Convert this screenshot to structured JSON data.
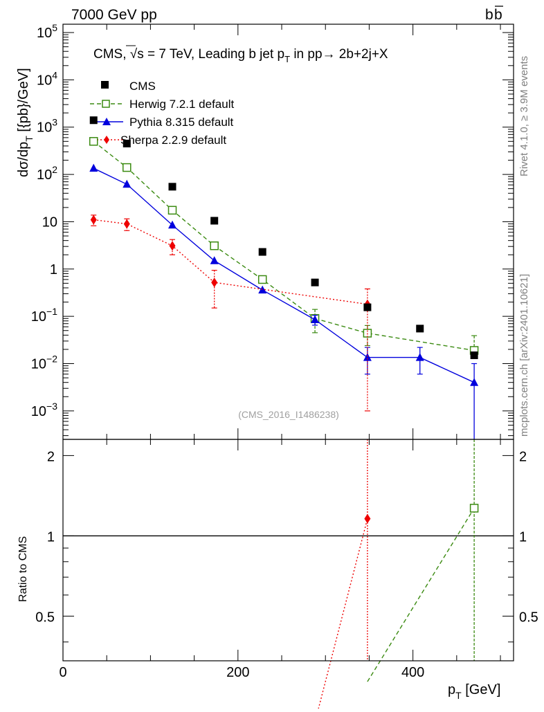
{
  "chart_data": {
    "type": "line",
    "header": {
      "left": "7000 GeV pp",
      "right": "b",
      "right_bar": "b"
    },
    "title": {
      "prefix": "CMS, ",
      "sqrt": "√s",
      "rest": " = 7 TeV, Leading b jet p",
      "sub": "T",
      "tail": " in pp→  2b+2j+X"
    },
    "ylabel": {
      "main": "dσ/dp",
      "sub": "T",
      "units": "  [{pb}/GeV]"
    },
    "xlabel": {
      "main": "p",
      "sub": "T",
      "units": " [GeV]"
    },
    "ratio_ylabel": "Ratio to CMS",
    "analysis_id": "(CMS_2016_I1486238)",
    "side_text_top": "Rivet 4.1.0, ≥ 3.9M events",
    "side_text_bottom": "mcplots.cern.ch [arXiv:2401.10621]",
    "xlim": [
      0,
      515
    ],
    "ylim_main": [
      0.00025,
      150000
    ],
    "ylim_ratio": [
      0.34,
      2.3
    ],
    "main_yticks": [
      {
        "v": 100000,
        "base": "10",
        "exp": "5"
      },
      {
        "v": 10000,
        "base": "10",
        "exp": "4"
      },
      {
        "v": 1000,
        "base": "10",
        "exp": "3"
      },
      {
        "v": 100,
        "base": "10",
        "exp": "2"
      },
      {
        "v": 10,
        "base": "10",
        "exp": ""
      },
      {
        "v": 1,
        "base": "1",
        "exp": ""
      },
      {
        "v": 0.1,
        "base": "10",
        "exp": "−1"
      },
      {
        "v": 0.01,
        "base": "10",
        "exp": "−2"
      },
      {
        "v": 0.001,
        "base": "10",
        "exp": "−3"
      }
    ],
    "ratio_yticks": [
      {
        "v": 0.5,
        "label": "0.5"
      },
      {
        "v": 1,
        "label": "1"
      },
      {
        "v": 2,
        "label": "2"
      }
    ],
    "xticks": [
      {
        "v": 0,
        "label": "0"
      },
      {
        "v": 200,
        "label": "200"
      },
      {
        "v": 400,
        "label": "400"
      }
    ],
    "data": {
      "name": "CMS",
      "color": "#000000",
      "x": [
        35,
        73,
        125,
        173,
        228,
        288,
        348,
        408,
        470
      ],
      "y": [
        1400,
        450,
        55,
        10.5,
        2.3,
        0.52,
        0.155,
        0.055,
        0.015
      ]
    },
    "series": [
      {
        "name": "Herwig 7.2.1 default",
        "color": "#3a8a10",
        "marker": "open-square",
        "dash": "6,4",
        "x": [
          35,
          73,
          125,
          173,
          228,
          288,
          348,
          470
        ],
        "y": [
          500,
          140,
          17.5,
          3.1,
          0.6,
          0.09,
          0.044,
          0.019
        ],
        "err_lo": [
          0,
          0,
          0,
          0,
          0,
          0.045,
          0.02,
          0.005
        ],
        "err_hi": [
          0,
          0,
          0,
          0,
          0,
          0.05,
          0.02,
          0.02
        ],
        "ratio_x": [
          348,
          470
        ],
        "ratio_y": [
          0.284,
          1.27
        ]
      },
      {
        "name": "Pythia 8.315 default",
        "color": "#0000dd",
        "marker": "triangle",
        "dash": "",
        "x": [
          35,
          73,
          125,
          173,
          228,
          288,
          348,
          408,
          470
        ],
        "y": [
          135,
          62,
          8.5,
          1.5,
          0.36,
          0.085,
          0.0135,
          0.0135,
          0.004
        ],
        "err_lo": [
          0,
          0,
          0,
          0,
          0,
          0.02,
          0.0075,
          0.0075,
          0.0038
        ],
        "err_hi": [
          0,
          0,
          0,
          0,
          0,
          0.02,
          0.0085,
          0.0085,
          0.006
        ],
        "ratio_x": [],
        "ratio_y": []
      },
      {
        "name": "Sherpa 2.2.9 default",
        "color": "#ee0000",
        "marker": "diamond",
        "dash": "2,3",
        "x": [
          35,
          73,
          125,
          173,
          348
        ],
        "y": [
          11,
          9,
          3.1,
          0.52,
          0.18
        ],
        "err_lo": [
          2.8,
          2.5,
          1.1,
          0.37,
          0.179
        ],
        "err_hi": [
          2.8,
          2.5,
          1.1,
          0.42,
          0.2
        ],
        "ratio_x": [
          288,
          348
        ],
        "ratio_y": [
          0.2,
          1.16
        ]
      }
    ]
  }
}
